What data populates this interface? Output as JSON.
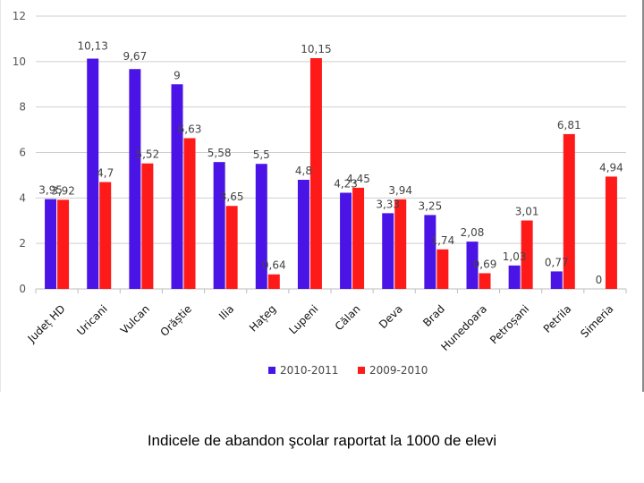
{
  "chart_data": {
    "type": "bar",
    "categories": [
      "Județ HD",
      "Uricani",
      "Vulcan",
      "Orăștie",
      "Ilia",
      "Hațeg",
      "Lupeni",
      "Călan",
      "Deva",
      "Brad",
      "Hunedoara",
      "Petroșani",
      "Petrila",
      "Simeria"
    ],
    "series": [
      {
        "name": "2010-2011",
        "color": "#4B14E6",
        "values": [
          3.95,
          10.13,
          9.67,
          9,
          5.58,
          5.5,
          4.8,
          4.23,
          3.33,
          3.25,
          2.08,
          1.03,
          0.77,
          0
        ],
        "labels": [
          "3,95",
          "10,13",
          "9,67",
          "9",
          "5,58",
          "5,5",
          "4,8",
          "4,23",
          "3,33",
          "3,25",
          "2,08",
          "1,03",
          "0,77",
          "0"
        ]
      },
      {
        "name": "2009-2010",
        "color": "#FF1A1A",
        "values": [
          3.92,
          4.7,
          5.52,
          6.63,
          3.65,
          0.64,
          10.15,
          4.45,
          3.94,
          1.74,
          0.69,
          3.01,
          6.81,
          4.94
        ],
        "labels": [
          "3,92",
          "4,7",
          "5,52",
          "6,63",
          "3,65",
          "0,64",
          "10,15",
          "4,45",
          "3,94",
          "1,74",
          "0,69",
          "3,01",
          "6,81",
          "4,94"
        ]
      }
    ],
    "y_ticks": [
      "0",
      "2",
      "4",
      "6",
      "8",
      "10",
      "12"
    ],
    "ylim": [
      0,
      12
    ],
    "grid": true,
    "legend": "bottom",
    "title": "",
    "xlabel": "",
    "ylabel": ""
  },
  "caption": "Indicele de abandon şcolar raportat la 1000 de elevi"
}
